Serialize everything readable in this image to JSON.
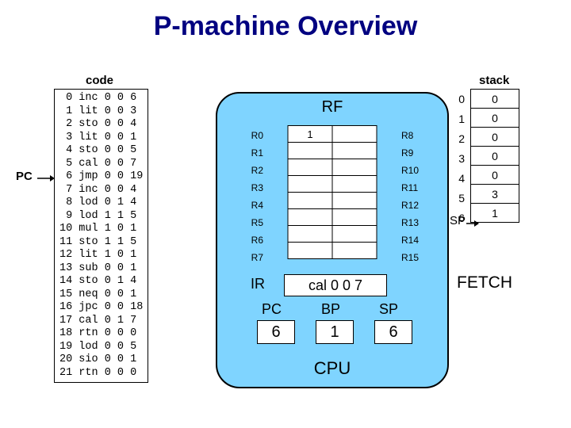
{
  "title": "P-machine Overview",
  "code": {
    "label": "code",
    "rows": [
      [
        0,
        "inc",
        0,
        0,
        6
      ],
      [
        1,
        "lit",
        0,
        0,
        3
      ],
      [
        2,
        "sto",
        0,
        0,
        4
      ],
      [
        3,
        "lit",
        0,
        0,
        1
      ],
      [
        4,
        "sto",
        0,
        0,
        5
      ],
      [
        5,
        "cal",
        0,
        0,
        7
      ],
      [
        6,
        "jmp",
        0,
        0,
        19
      ],
      [
        7,
        "inc",
        0,
        0,
        4
      ],
      [
        8,
        "lod",
        0,
        1,
        4
      ],
      [
        9,
        "lod",
        1,
        1,
        5
      ],
      [
        10,
        "mul",
        1,
        0,
        1
      ],
      [
        11,
        "sto",
        1,
        1,
        5
      ],
      [
        12,
        "lit",
        1,
        0,
        1
      ],
      [
        13,
        "sub",
        0,
        0,
        1
      ],
      [
        14,
        "sto",
        0,
        1,
        4
      ],
      [
        15,
        "neq",
        0,
        0,
        1
      ],
      [
        16,
        "jpc",
        0,
        0,
        18
      ],
      [
        17,
        "cal",
        0,
        1,
        7
      ],
      [
        18,
        "rtn",
        0,
        0,
        0
      ],
      [
        19,
        "lod",
        0,
        0,
        5
      ],
      [
        20,
        "sio",
        0,
        0,
        1
      ],
      [
        21,
        "rtn",
        0,
        0,
        0
      ]
    ]
  },
  "pc_pointer": {
    "label": "PC",
    "row": 6
  },
  "cpu": {
    "rf_label": "RF",
    "rf_values": [
      "1",
      "",
      "",
      "",
      "",
      "",
      "",
      ""
    ],
    "left_regs": [
      "R0",
      "R1",
      "R2",
      "R3",
      "R4",
      "R5",
      "R6",
      "R7"
    ],
    "right_regs": [
      "R8",
      "R9",
      "R10",
      "R11",
      "R12",
      "R13",
      "R14",
      "R15"
    ],
    "ir_label": "IR",
    "ir_value": "cal 0 0 7",
    "pc_label": "PC",
    "pc_value": "6",
    "bp_label": "BP",
    "bp_value": "1",
    "sp_label": "SP",
    "sp_value": "6",
    "cpu_label": "CPU"
  },
  "stack": {
    "label": "stack",
    "values": [
      "0",
      "0",
      "0",
      "0",
      "0",
      "3",
      "1"
    ],
    "sp_label": "SP"
  },
  "fetch_label": "FETCH",
  "colors": {
    "title": "#000080",
    "cpu_bg": "#7fd4ff"
  }
}
